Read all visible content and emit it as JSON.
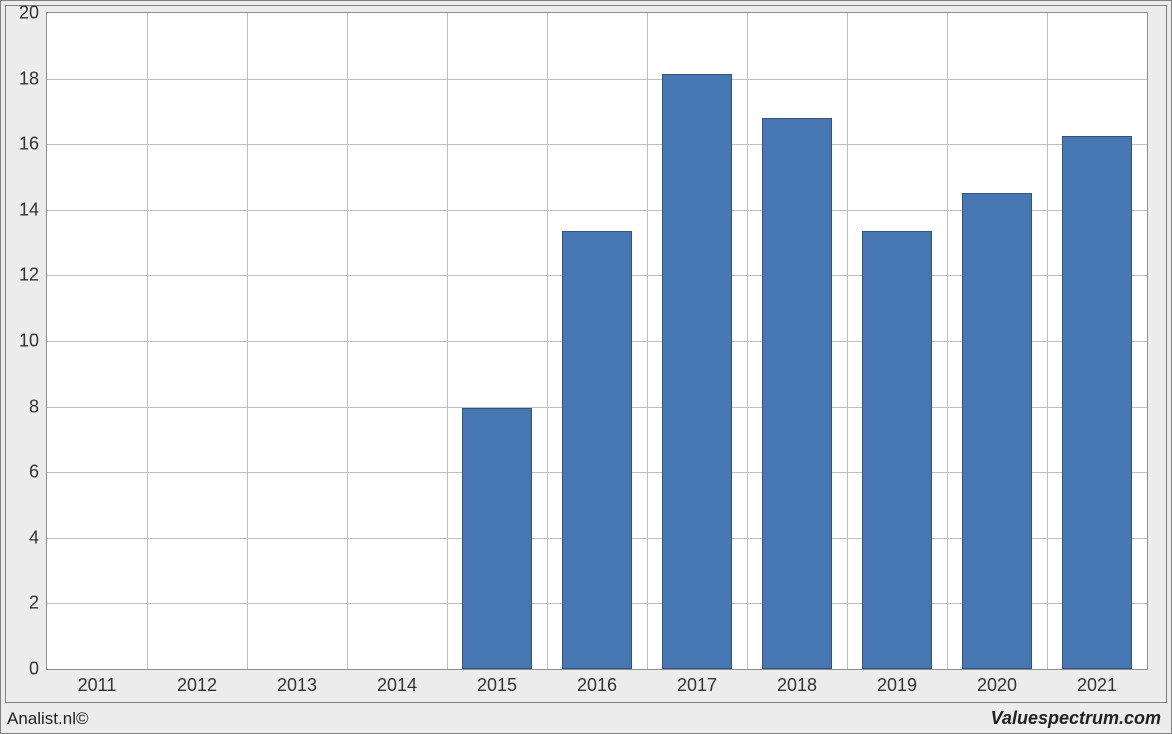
{
  "chart": {
    "type": "bar",
    "background_color": "#ececec",
    "plot_background": "#ffffff",
    "outer_border_color": "#808080",
    "plot_border_color": "#8e8e8e",
    "grid_color": "#bfbfbf",
    "bar_fill": "#4677b2",
    "bar_border": "#34547e",
    "tick_fontsize": 18,
    "tick_color": "#333333",
    "ylim": [
      0,
      20
    ],
    "ytick_step": 2,
    "yticks": [
      0,
      2,
      4,
      6,
      8,
      10,
      12,
      14,
      16,
      18,
      20
    ],
    "categories": [
      "2011",
      "2012",
      "2013",
      "2014",
      "2015",
      "2016",
      "2017",
      "2018",
      "2019",
      "2020",
      "2021"
    ],
    "values": [
      0,
      0,
      0,
      0,
      7.95,
      13.35,
      18.15,
      16.8,
      13.35,
      14.5,
      16.25
    ],
    "bar_width": 0.7
  },
  "footer": {
    "left": "Analist.nl©",
    "right": "Valuespectrum.com"
  }
}
